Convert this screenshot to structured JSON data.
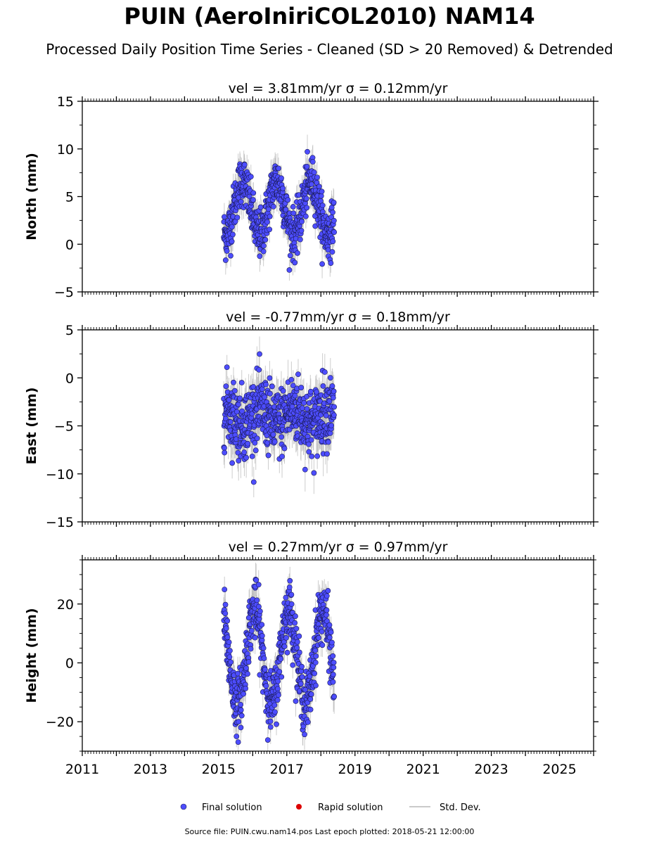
{
  "title": "PUIN (AeroIniriCOL2010) NAM14",
  "subtitle": "Processed Daily Position Time Series - Cleaned (SD > 20 Removed) & Detrended",
  "footer": "Source file: PUIN.cwu.nam14.pos  Last epoch plotted: 2018-05-21 12:00:00",
  "colors": {
    "final": "#4d4dff",
    "final_edge": "#1a1a55",
    "rapid": "#dd0000",
    "stddev": "#b8b8b8"
  },
  "legend": {
    "placement": "bottom-center",
    "final": "Final solution",
    "rapid": "Rapid solution",
    "stddev": "Std. Dev."
  },
  "chart_data": [
    {
      "type": "scatter",
      "title": "vel = 3.81mm/yr   σ = 0.12mm/yr",
      "ylabel": "North (mm)",
      "xlim": [
        2011,
        2026
      ],
      "ylim": [
        -5,
        15
      ],
      "yticks": [
        -5,
        0,
        5,
        10,
        15
      ],
      "data_span": [
        2015.15,
        2018.39
      ],
      "series": [
        {
          "name": "Final solution",
          "y_mean": 3.8,
          "annual_amplitude": 2.8,
          "annual_phase_peak": 0.7,
          "noise_sd": 1.3,
          "stddev_mm": 1.4
        }
      ]
    },
    {
      "type": "scatter",
      "title": "vel = -0.77mm/yr   σ = 0.18mm/yr",
      "ylabel": "East (mm)",
      "xlim": [
        2011,
        2026
      ],
      "ylim": [
        -15,
        5
      ],
      "yticks": [
        -15,
        -10,
        -5,
        0,
        5
      ],
      "data_span": [
        2015.15,
        2018.39
      ],
      "series": [
        {
          "name": "Final solution",
          "y_mean": -4.0,
          "annual_amplitude": 0.8,
          "annual_phase_peak": 0.2,
          "noise_sd": 1.8,
          "stddev_mm": 1.8
        }
      ]
    },
    {
      "type": "scatter",
      "title": "vel = 0.27mm/yr   σ = 0.97mm/yr",
      "ylabel": "Height (mm)",
      "xlim": [
        2011,
        2026
      ],
      "ylim": [
        -30,
        35
      ],
      "yticks": [
        -20,
        0,
        20
      ],
      "xticks": [
        2011,
        2013,
        2015,
        2017,
        2019,
        2021,
        2023,
        2025
      ],
      "data_span": [
        2015.15,
        2018.39
      ],
      "series": [
        {
          "name": "Final solution",
          "y_mean": 2.0,
          "annual_amplitude": 16.0,
          "annual_phase_peak": 0.05,
          "noise_sd": 5.0,
          "stddev_mm": 4.5
        }
      ]
    }
  ]
}
